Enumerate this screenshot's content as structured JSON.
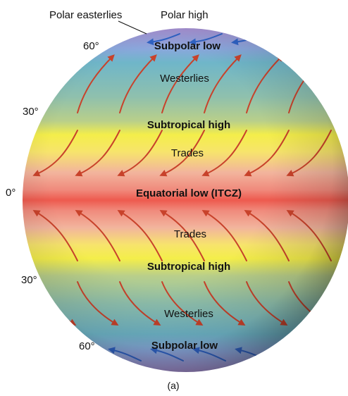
{
  "diagram": {
    "caption": "(a)",
    "top_labels": {
      "polar_easterlies": "Polar easterlies",
      "polar_high": "Polar high"
    },
    "latitudes": {
      "north_60": "60°",
      "north_30": "30°",
      "equator": "0°",
      "south_30": "30°",
      "south_60": "60°"
    },
    "bands": {
      "subpolar_low_north": "Subpolar low",
      "westerlies_north": "Westerlies",
      "subtropical_high_north": "Subtropical high",
      "trades_north": "Trades",
      "equatorial_low": "Equatorial low (ITCZ)",
      "trades_south": "Trades",
      "subtropical_high_south": "Subtropical high",
      "westerlies_south": "Westerlies",
      "subpolar_low_south": "Subpolar low"
    },
    "colors": {
      "polar": "#9a8ccf",
      "subpolar": "#6ab0c8",
      "westerlies": "#93bfae",
      "subtropical_high": "#f4ee4a",
      "trades": "#f2b49d",
      "equatorial": "#ee5a4e",
      "wind_arrow": "#c8422b",
      "polar_arrow": "#2f62c4"
    }
  }
}
